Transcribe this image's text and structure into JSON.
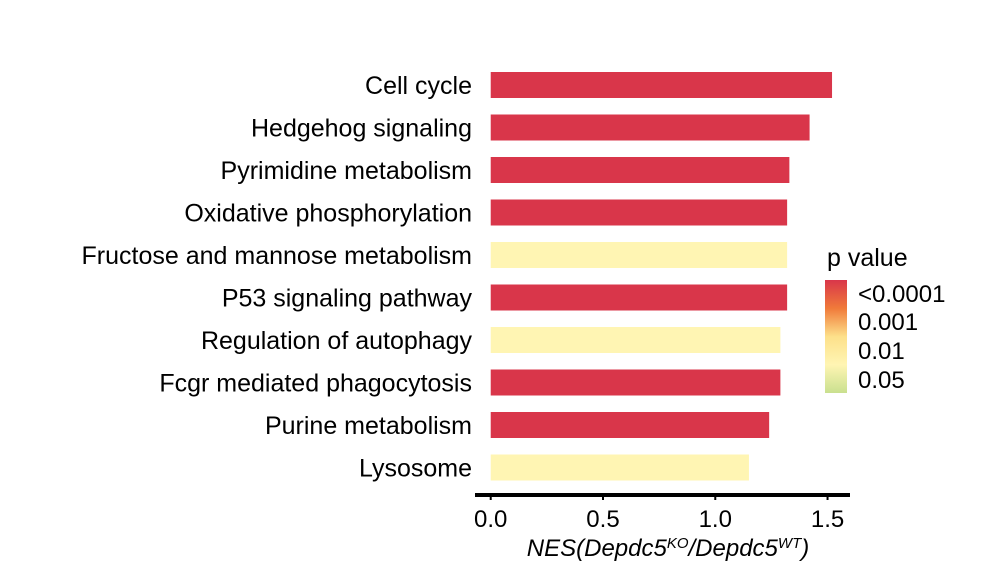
{
  "chart_data": {
    "type": "bar",
    "orientation": "horizontal",
    "categories": [
      "Cell cycle",
      "Hedgehog signaling",
      "Pyrimidine metabolism",
      "Oxidative phosphorylation",
      "Fructose and mannose metabolism",
      "P53 signaling pathway",
      "Regulation of autophagy",
      "Fcgr mediated phagocytosis",
      "Purine metabolism",
      "Lysosome"
    ],
    "values": [
      1.52,
      1.42,
      1.33,
      1.32,
      1.32,
      1.32,
      1.29,
      1.29,
      1.24,
      1.15
    ],
    "bar_colors": [
      "#d9364a",
      "#d9364a",
      "#d9364a",
      "#d9364a",
      "#fff5b3",
      "#d9364a",
      "#fff5b3",
      "#d9364a",
      "#d9364a",
      "#fff5b3"
    ],
    "xlabel": {
      "prefix": "NES(Depdc5",
      "sup1": "KO",
      "mid": "/Depdc5",
      "sup2": "WT",
      "suffix": ")"
    },
    "xlim": [
      -0.07,
      1.6
    ],
    "xticks": [
      "0.0",
      "0.5",
      "1.0",
      "1.5"
    ],
    "xtick_values": [
      0.0,
      0.5,
      1.0,
      1.5
    ],
    "grid": false,
    "legend": {
      "title": "p value",
      "placement": "right",
      "labels": [
        "<0.0001",
        "0.001",
        "0.01",
        "0.05"
      ],
      "gradient_colors": [
        "#d9364a",
        "#f07a3a",
        "#fde08a",
        "#fff5b3",
        "#c9e08f"
      ]
    }
  }
}
